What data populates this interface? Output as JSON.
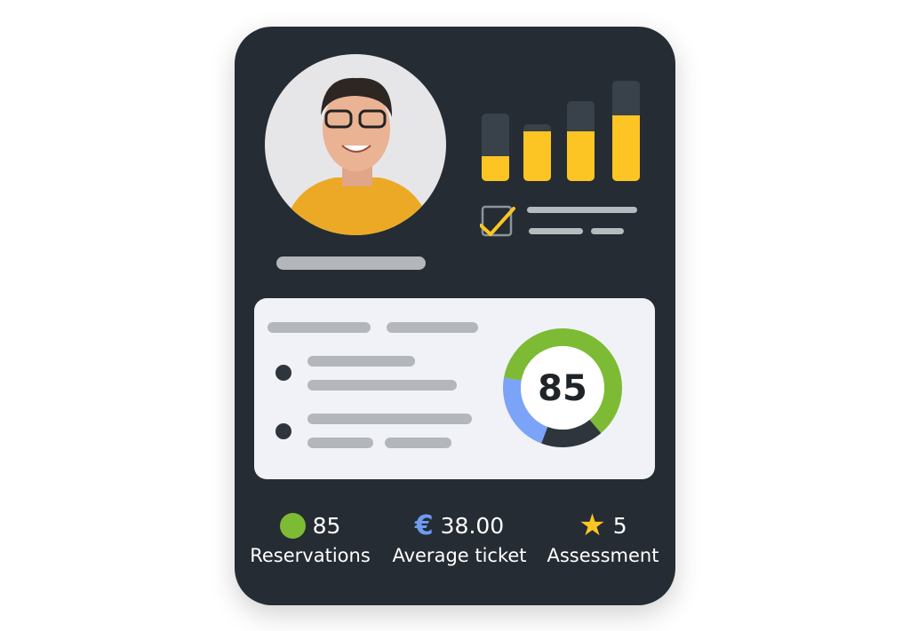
{
  "chart_data": {
    "type": "bar",
    "bars": [
      {
        "filled": 0.37,
        "total": 1.0
      },
      {
        "filled": 0.74,
        "total": 0.84
      },
      {
        "filled": 0.74,
        "total": 1.18
      },
      {
        "filled": 0.98,
        "total": 1.49
      }
    ]
  },
  "score": {
    "value": "85",
    "segments": [
      {
        "color": "#7dbb35",
        "share": 0.61
      },
      {
        "color": "#2e353c",
        "share": 0.17
      },
      {
        "color": "#7ba3f7",
        "share": 0.22
      }
    ]
  },
  "stats": [
    {
      "icon": "green-dot-icon",
      "value": "85",
      "label": "Reservations",
      "color": "#7dbb35"
    },
    {
      "icon": "euro-icon",
      "value": "38.00",
      "label": "Average ticket",
      "symbol": "€",
      "color": "#6f9bef"
    },
    {
      "icon": "star-icon",
      "value": "5",
      "label": "Assessment",
      "symbol": "★",
      "color": "#fcc523"
    }
  ],
  "checkbox": {
    "checked": true
  }
}
